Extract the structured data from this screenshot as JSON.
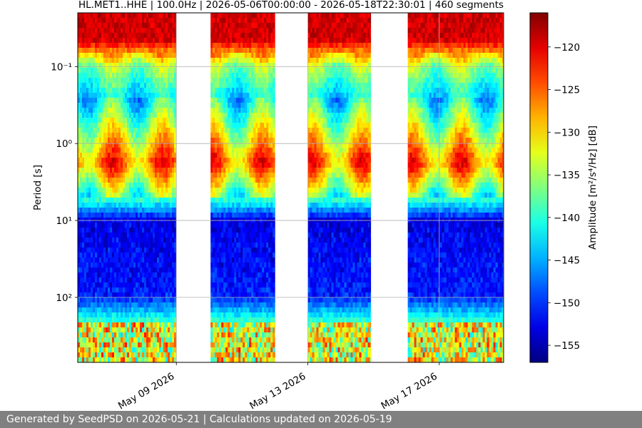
{
  "chart_data": {
    "type": "heatmap",
    "title": "HL.MET1..HHE | 100.0Hz | 2026-05-06T00:00:00 - 2026-05-18T22:30:01 | 460 segments",
    "ylabel": "Period [s]",
    "colorbar_label": "Amplitude [m²/s⁴/Hz] [dB]",
    "colormap": "jet",
    "yscale": "log",
    "y_direction": "inverted",
    "ylim": [
      0.02,
      700
    ],
    "grid": true,
    "x_ticks": [
      {
        "label": "May 09 2026",
        "date": "2026-05-09"
      },
      {
        "label": "May 13 2026",
        "date": "2026-05-13"
      },
      {
        "label": "May 17 2026",
        "date": "2026-05-17"
      }
    ],
    "y_ticks": [
      {
        "label": "10⁻¹",
        "value": 0.1
      },
      {
        "label": "10⁰",
        "value": 1
      },
      {
        "label": "10¹",
        "value": 10
      },
      {
        "label": "10²",
        "value": 100
      }
    ],
    "colorbar_range": [
      -157,
      -116
    ],
    "colorbar_ticks": [
      -120,
      -125,
      -130,
      -135,
      -140,
      -145,
      -150,
      -155
    ],
    "data_segments": [
      {
        "start": "2026-05-06T00:00",
        "end": "2026-05-09T00:00"
      },
      {
        "start": "2026-05-10T01:00",
        "end": "2026-05-12T00:00"
      },
      {
        "start": "2026-05-13T00:00",
        "end": "2026-05-14T22:00"
      },
      {
        "start": "2026-05-16T01:00",
        "end": "2026-05-18T22:30"
      }
    ]
  },
  "footer": {
    "text": "Generated by SeedPSD on 2026-05-21 | Calculations updated on 2026-05-19"
  }
}
